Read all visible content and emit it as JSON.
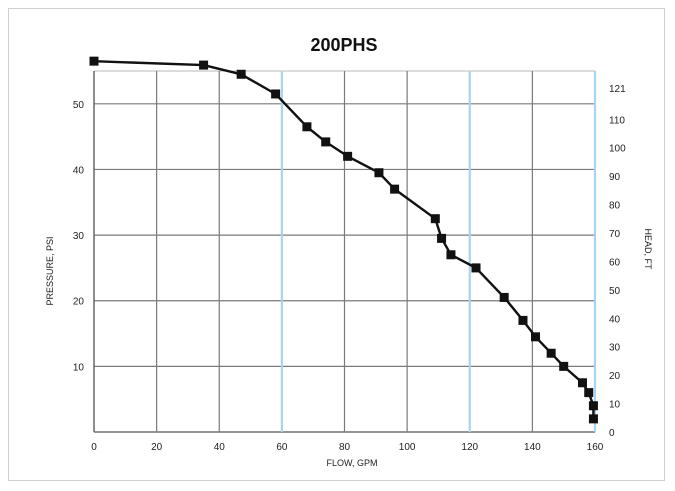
{
  "chart_data": {
    "type": "line",
    "title": "200PHS",
    "xlabel": "FLOW, GPM",
    "ylabel": "PRESSURE, PSI",
    "y2label": "HEAD, FT",
    "xlim": [
      0,
      160
    ],
    "ylim": [
      0,
      55
    ],
    "y2lim": [
      0,
      127
    ],
    "grid": true,
    "x_ticks": [
      "0",
      "20",
      "40",
      "60",
      "80",
      "100",
      "120",
      "140",
      "160"
    ],
    "y_ticks": [
      "10",
      "20",
      "30",
      "40",
      "50"
    ],
    "y2_ticks": [
      "0",
      "10",
      "20",
      "30",
      "40",
      "50",
      "60",
      "70",
      "80",
      "90",
      "100",
      "110",
      "121"
    ],
    "highlight_gridlines_x": [
      60,
      120,
      160
    ],
    "series": [
      {
        "marker": "square",
        "color": "#111111",
        "x": [
          0,
          35,
          47,
          58,
          68,
          74,
          81,
          91,
          96,
          109,
          111,
          114,
          122,
          131,
          137,
          141,
          146,
          150,
          156,
          158,
          159.5,
          159.5
        ],
        "y": [
          56.5,
          55.9,
          54.5,
          51.5,
          46.5,
          44.2,
          42.0,
          39.5,
          37.0,
          32.5,
          29.5,
          27.0,
          25.0,
          20.5,
          17.0,
          14.5,
          12.0,
          10.0,
          7.5,
          6.0,
          4.0,
          2.0
        ]
      }
    ]
  }
}
